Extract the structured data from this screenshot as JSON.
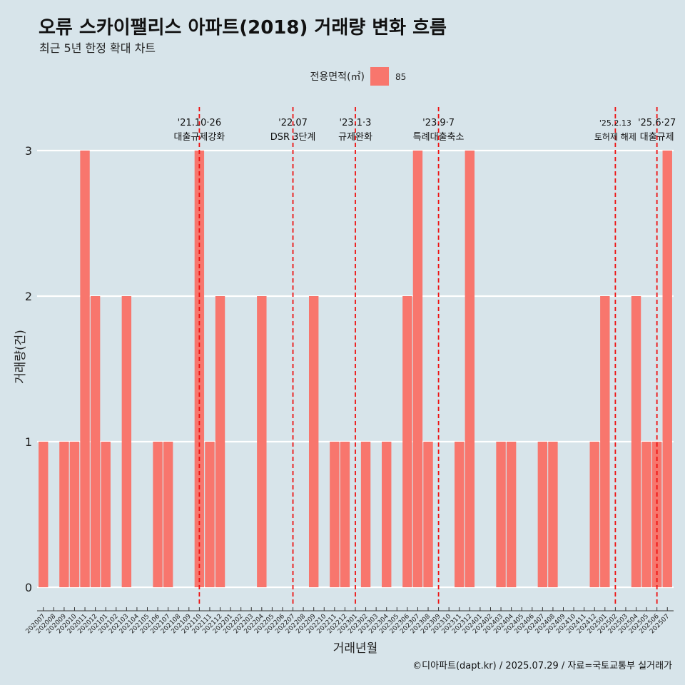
{
  "header": {
    "title": "오류 스카이팰리스 아파트(2018) 거래량 변화 흐름",
    "subtitle": "최근 5년 한정 확대 차트"
  },
  "caption": "©디아파트(dapt.kr) / 2025.07.29 / 자료=국토교통부 실거래가",
  "colors": {
    "background": "#d7e4ea",
    "bar": "#f8766d",
    "event_line": "#ee1111",
    "grid": "#ffffff"
  },
  "chart_data": {
    "type": "bar",
    "xlabel": "거래년월",
    "ylabel": "거래량(건)",
    "ylim": [
      0,
      3
    ],
    "yticks": [
      0,
      1,
      2,
      3
    ],
    "grid": true,
    "legend": {
      "title": "전용면적(㎡)",
      "placement": "top",
      "entries": [
        "85"
      ]
    },
    "categories": [
      "202007",
      "202008",
      "202009",
      "202010",
      "202011",
      "202012",
      "202101",
      "202102",
      "202103",
      "202104",
      "202105",
      "202106",
      "202107",
      "202108",
      "202109",
      "202110",
      "202111",
      "202112",
      "202201",
      "202202",
      "202203",
      "202204",
      "202205",
      "202206",
      "202207",
      "202208",
      "202209",
      "202210",
      "202211",
      "202212",
      "202301",
      "202302",
      "202303",
      "202304",
      "202305",
      "202306",
      "202307",
      "202308",
      "202309",
      "202310",
      "202311",
      "202312",
      "202401",
      "202402",
      "202403",
      "202404",
      "202405",
      "202406",
      "202407",
      "202408",
      "202409",
      "202410",
      "202411",
      "202412",
      "202501",
      "202502",
      "202503",
      "202504",
      "202505",
      "202506",
      "202507"
    ],
    "series": [
      {
        "name": "85",
        "values": [
          1,
          0,
          1,
          1,
          3,
          2,
          1,
          0,
          2,
          0,
          0,
          1,
          1,
          0,
          0,
          3,
          1,
          2,
          0,
          0,
          0,
          2,
          0,
          0,
          0,
          0,
          2,
          0,
          1,
          1,
          0,
          1,
          0,
          1,
          0,
          2,
          3,
          1,
          0,
          0,
          1,
          3,
          0,
          0,
          1,
          1,
          0,
          0,
          1,
          1,
          0,
          0,
          0,
          1,
          2,
          0,
          0,
          2,
          1,
          1,
          3
        ]
      }
    ],
    "events": [
      {
        "month": "202110",
        "date": "'21.10·26",
        "label": "대출규제강화"
      },
      {
        "month": "202207",
        "date": "'22.07",
        "label": "DSR 3단계"
      },
      {
        "month": "202301",
        "date": "'23.1·3",
        "label": "규제완화"
      },
      {
        "month": "202309",
        "date": "'23.9·7",
        "label": "특례대출축소"
      },
      {
        "month": "202502",
        "date": "'25.2.13",
        "label": "토허제 해제"
      },
      {
        "month": "202506",
        "date": "'25.6·27",
        "label": "대출규제"
      }
    ]
  }
}
